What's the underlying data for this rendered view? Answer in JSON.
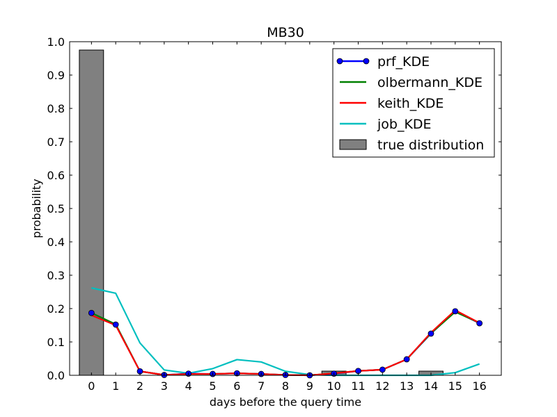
{
  "chart_data": {
    "type": "line",
    "title": "MB30",
    "xlabel": "days before the query time",
    "ylabel": "probability",
    "xlim": [
      -0.9,
      16.9
    ],
    "ylim": [
      0.0,
      1.0
    ],
    "x_ticks": [
      0,
      1,
      2,
      3,
      4,
      5,
      6,
      7,
      8,
      9,
      10,
      11,
      12,
      13,
      14,
      15,
      16
    ],
    "x_tick_labels": [
      "0",
      "1",
      "2",
      "3",
      "4",
      "5",
      "6",
      "7",
      "8",
      "9",
      "10",
      "11",
      "12",
      "13",
      "14",
      "15",
      "16"
    ],
    "y_ticks": [
      0.0,
      0.1,
      0.2,
      0.3,
      0.4,
      0.5,
      0.6,
      0.7,
      0.8,
      0.9,
      1.0
    ],
    "y_tick_labels": [
      "0.0",
      "0.1",
      "0.2",
      "0.3",
      "0.4",
      "0.5",
      "0.6",
      "0.7",
      "0.8",
      "0.9",
      "1.0"
    ],
    "grid": false,
    "legend_position": "top-right",
    "x": [
      0,
      1,
      2,
      3,
      4,
      5,
      6,
      7,
      8,
      9,
      10,
      11,
      12,
      13,
      14,
      15,
      16
    ],
    "series": [
      {
        "name": "prf_KDE",
        "kind": "line",
        "markers": true,
        "color": "#0000ff",
        "marker_color": "#0000ff",
        "values": [
          0.187,
          0.152,
          0.012,
          0.001,
          0.005,
          0.004,
          0.006,
          0.004,
          0.001,
          0.0,
          0.005,
          0.013,
          0.017,
          0.048,
          0.125,
          0.192,
          0.156
        ]
      },
      {
        "name": "olbermann_KDE",
        "kind": "line",
        "markers": false,
        "color": "#008000",
        "values": [
          0.187,
          0.153,
          0.012,
          0.001,
          0.004,
          0.004,
          0.006,
          0.004,
          0.001,
          0.0,
          0.006,
          0.013,
          0.017,
          0.048,
          0.126,
          0.19,
          0.157
        ]
      },
      {
        "name": "keith_KDE",
        "kind": "line",
        "markers": false,
        "color": "#ff0000",
        "values": [
          0.18,
          0.15,
          0.012,
          0.001,
          0.004,
          0.004,
          0.006,
          0.004,
          0.001,
          0.0,
          0.006,
          0.013,
          0.017,
          0.048,
          0.128,
          0.195,
          0.157
        ]
      },
      {
        "name": "job_KDE",
        "kind": "line",
        "markers": false,
        "color": "#00bfbf",
        "values": [
          0.262,
          0.246,
          0.097,
          0.016,
          0.006,
          0.02,
          0.047,
          0.04,
          0.012,
          0.002,
          0.0,
          0.0,
          0.0,
          0.0,
          0.0,
          0.008,
          0.034
        ]
      },
      {
        "name": "true distribution",
        "kind": "bar",
        "color": "#808080",
        "values": [
          0.975,
          0.0,
          0.0,
          0.0,
          0.0,
          0.0,
          0.0,
          0.0,
          0.0,
          0.0,
          0.0125,
          0.0,
          0.0,
          0.0,
          0.0125,
          0.0,
          0.0
        ]
      }
    ]
  }
}
